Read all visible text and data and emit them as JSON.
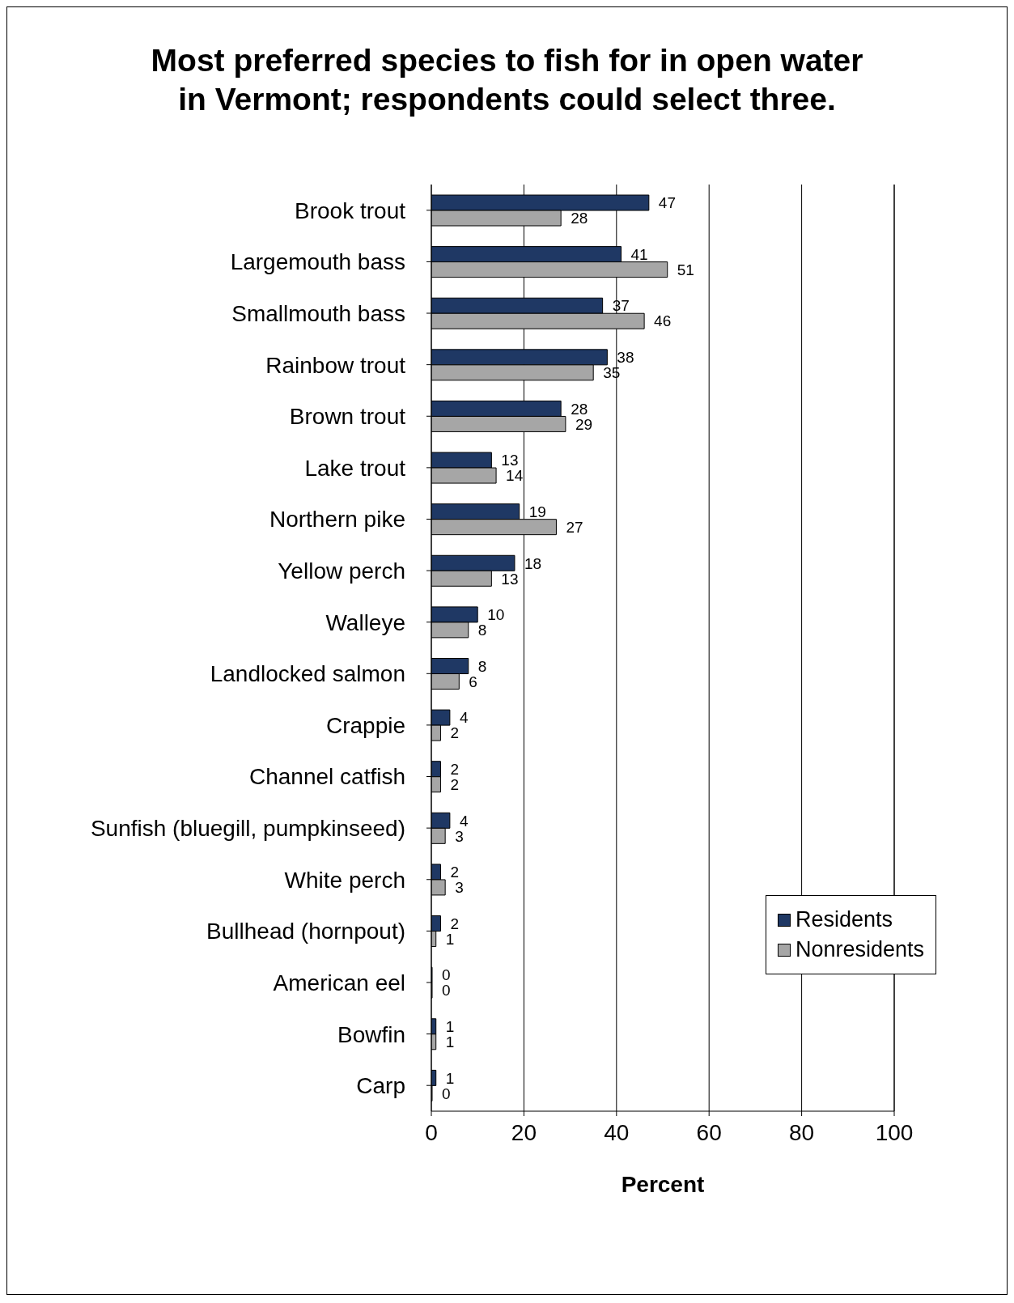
{
  "chart_data": {
    "type": "bar",
    "orientation": "horizontal",
    "title": "Most preferred species to fish for in open water\nin Vermont; respondents could select three.",
    "xlabel": "Percent",
    "categories": [
      "Brook trout",
      "Largemouth bass",
      "Smallmouth bass",
      "Rainbow trout",
      "Brown trout",
      "Lake trout",
      "Northern pike",
      "Yellow perch",
      "Walleye",
      "Landlocked salmon",
      "Crappie",
      "Channel catfish",
      "Sunfish (bluegill, pumpkinseed)",
      "White perch",
      "Bullhead (hornpout)",
      "American eel",
      "Bowfin",
      "Carp"
    ],
    "series": [
      {
        "name": "Residents",
        "color": "#1f3864",
        "values": [
          47,
          41,
          37,
          38,
          28,
          13,
          19,
          18,
          10,
          8,
          4,
          2,
          4,
          2,
          2,
          0,
          1,
          1
        ]
      },
      {
        "name": "Nonresidents",
        "color": "#a6a6a6",
        "values": [
          28,
          51,
          46,
          35,
          29,
          14,
          27,
          13,
          8,
          6,
          2,
          2,
          3,
          3,
          1,
          0,
          1,
          0
        ]
      }
    ],
    "xlim": [
      0,
      100
    ],
    "xticks": [
      0,
      20,
      40,
      60,
      80,
      100
    ],
    "grid": "x",
    "legend": "right",
    "data_labels": true
  }
}
